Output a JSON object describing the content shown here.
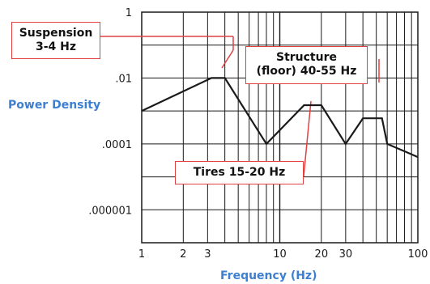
{
  "chart_data": {
    "type": "line",
    "xlabel": "Frequency (Hz)",
    "ylabel": "Power Density",
    "x_scale": "log",
    "y_scale": "log",
    "xlim": [
      1,
      100
    ],
    "ylim": [
      1e-07,
      1
    ],
    "x_tick_labels": [
      {
        "value": 1,
        "label": "1"
      },
      {
        "value": 2,
        "label": "2"
      },
      {
        "value": 3,
        "label": "3"
      },
      {
        "value": 10,
        "label": "10"
      },
      {
        "value": 20,
        "label": "20"
      },
      {
        "value": 30,
        "label": "30"
      },
      {
        "value": 100,
        "label": "100"
      }
    ],
    "y_tick_labels": [
      {
        "value": 1,
        "label": "1"
      },
      {
        "value": 0.01,
        "label": ".01"
      },
      {
        "value": 0.0001,
        "label": ".0001"
      },
      {
        "value": 1e-06,
        "label": ".000001"
      }
    ],
    "grid": true,
    "series": [
      {
        "color": "#1a1a1a",
        "points": [
          [
            1,
            0.001
          ],
          [
            3.2,
            0.01
          ],
          [
            4,
            0.01
          ],
          [
            8,
            0.0001
          ],
          [
            15,
            0.0015
          ],
          [
            20,
            0.0015
          ],
          [
            30,
            0.0001
          ],
          [
            40,
            0.0006
          ],
          [
            55,
            0.0006
          ],
          [
            60,
            0.0001
          ],
          [
            100,
            4e-05
          ]
        ]
      }
    ],
    "annotations": [
      {
        "id": "suspension",
        "lines": [
          "Suspension",
          "3-4 Hz"
        ]
      },
      {
        "id": "structure",
        "lines": [
          "Structure",
          "(floor) 40-55 Hz"
        ]
      },
      {
        "id": "tires",
        "lines": [
          "Tires 15-20 Hz"
        ]
      }
    ],
    "colors": {
      "axis_title": "#3d7fd0",
      "callout_border": "#e04040",
      "line": "#1a1a1a",
      "grid": "#1a1a1a"
    }
  }
}
